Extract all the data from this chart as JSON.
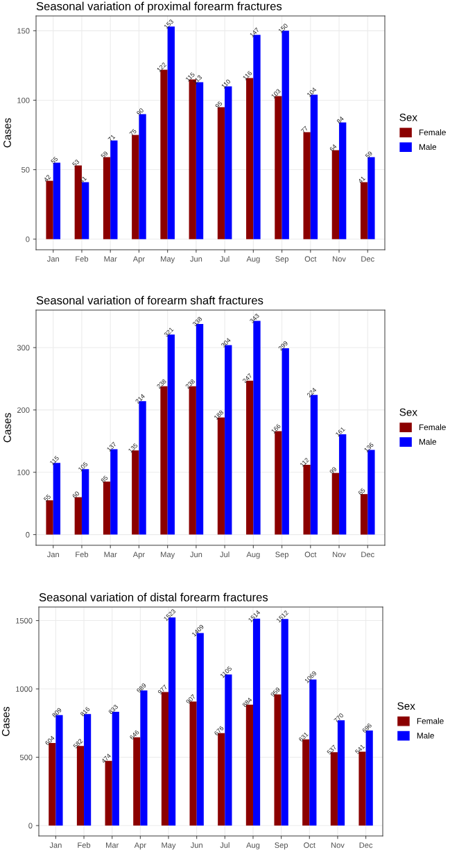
{
  "chart_data": [
    {
      "type": "bar",
      "title": "Seasonal variation of proximal forearm fractures",
      "ylabel": "Cases",
      "legend_title": "Sex",
      "legend": "right",
      "grid": true,
      "data_labels": true,
      "categories": [
        "Jan",
        "Feb",
        "Mar",
        "Apr",
        "May",
        "Jun",
        "Jul",
        "Aug",
        "Sep",
        "Oct",
        "Nov",
        "Dec"
      ],
      "ylim": [
        -7.65,
        160.65
      ],
      "yticks": [
        0,
        50,
        100,
        150
      ],
      "series": [
        {
          "name": "Female",
          "color": "#8b0000",
          "values": [
            42,
            53,
            59,
            75,
            122,
            115,
            95,
            116,
            103,
            77,
            64,
            41
          ]
        },
        {
          "name": "Male",
          "color": "#0000ff",
          "values": [
            55,
            41,
            71,
            90,
            153,
            113,
            110,
            147,
            150,
            104,
            84,
            59
          ]
        }
      ]
    },
    {
      "type": "bar",
      "title": "Seasonal variation of forearm shaft fractures",
      "ylabel": "Cases",
      "legend_title": "Sex",
      "legend": "right",
      "grid": true,
      "data_labels": true,
      "categories": [
        "Jan",
        "Feb",
        "Mar",
        "Apr",
        "May",
        "Jun",
        "Jul",
        "Aug",
        "Sep",
        "Oct",
        "Nov",
        "Dec"
      ],
      "ylim": [
        -17.15,
        360.15
      ],
      "yticks": [
        0,
        100,
        200,
        300
      ],
      "series": [
        {
          "name": "Female",
          "color": "#8b0000",
          "values": [
            55,
            60,
            85,
            135,
            238,
            238,
            188,
            247,
            166,
            112,
            99,
            65
          ]
        },
        {
          "name": "Male",
          "color": "#0000ff",
          "values": [
            115,
            105,
            137,
            214,
            321,
            338,
            304,
            343,
            299,
            224,
            161,
            136
          ]
        }
      ]
    },
    {
      "type": "bar",
      "title": "Seasonal variation of distal forearm fractures",
      "ylabel": "Cases",
      "legend_title": "Sex",
      "legend": "right",
      "grid": true,
      "data_labels": true,
      "categories": [
        "Jan",
        "Feb",
        "Mar",
        "Apr",
        "May",
        "Jun",
        "Jul",
        "Aug",
        "Sep",
        "Oct",
        "Nov",
        "Dec"
      ],
      "ylim": [
        -76.15,
        1599.15
      ],
      "yticks": [
        0,
        500,
        1000,
        1500
      ],
      "series": [
        {
          "name": "Female",
          "color": "#8b0000",
          "values": [
            604,
            582,
            474,
            646,
            977,
            907,
            676,
            884,
            959,
            631,
            537,
            541
          ]
        },
        {
          "name": "Male",
          "color": "#0000ff",
          "values": [
            809,
            816,
            833,
            989,
            1523,
            1409,
            1105,
            1514,
            1512,
            1069,
            770,
            696
          ]
        }
      ]
    }
  ]
}
